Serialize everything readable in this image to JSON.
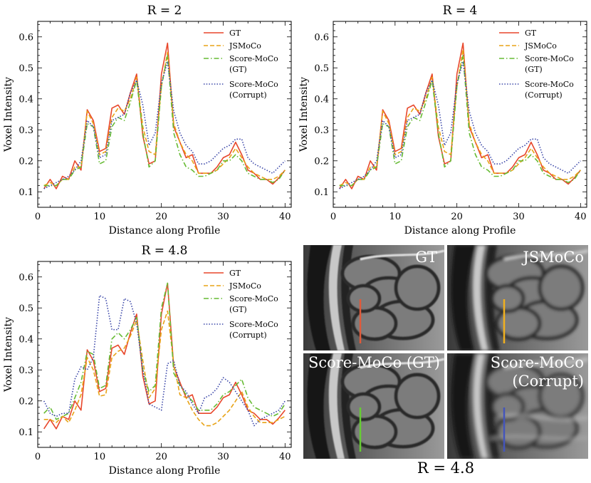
{
  "chart_data": [
    {
      "type": "line",
      "title": "R = 2",
      "xlabel": "Distance along Profile",
      "ylabel": "Voxel Intensity",
      "xlim": [
        0,
        41
      ],
      "ylim": [
        0.05,
        0.65
      ],
      "xticks": [
        "0",
        "10",
        "20",
        "30",
        "40"
      ],
      "yticks": [
        "0.1",
        "0.2",
        "0.3",
        "0.4",
        "0.5",
        "0.6"
      ],
      "legend_position": "top-right",
      "legend": [
        "GT",
        "JSMoCo",
        "Score-MoCo (GT)",
        "Score-MoCo (Corrupt)"
      ],
      "x": [
        1,
        2,
        3,
        4,
        5,
        6,
        7,
        8,
        9,
        10,
        11,
        12,
        13,
        14,
        15,
        16,
        17,
        18,
        19,
        20,
        21,
        22,
        23,
        24,
        25,
        26,
        27,
        28,
        29,
        30,
        31,
        32,
        33,
        34,
        35,
        36,
        37,
        38,
        39,
        40
      ],
      "series": [
        {
          "name": "GT",
          "color": "#e8472b",
          "dash": "solid",
          "values": [
            0.11,
            0.14,
            0.11,
            0.15,
            0.14,
            0.2,
            0.17,
            0.365,
            0.33,
            0.23,
            0.24,
            0.37,
            0.38,
            0.35,
            0.42,
            0.48,
            0.28,
            0.19,
            0.2,
            0.48,
            0.58,
            0.31,
            0.26,
            0.21,
            0.22,
            0.16,
            0.16,
            0.16,
            0.18,
            0.21,
            0.22,
            0.26,
            0.22,
            0.17,
            0.16,
            0.14,
            0.14,
            0.125,
            0.145,
            0.17
          ]
        },
        {
          "name": "JSMoCo",
          "color": "#e8a317",
          "dash": "dashed",
          "values": [
            0.12,
            0.13,
            0.12,
            0.14,
            0.14,
            0.18,
            0.18,
            0.36,
            0.32,
            0.22,
            0.23,
            0.34,
            0.37,
            0.36,
            0.4,
            0.47,
            0.31,
            0.23,
            0.22,
            0.44,
            0.55,
            0.32,
            0.26,
            0.22,
            0.2,
            0.16,
            0.16,
            0.16,
            0.17,
            0.19,
            0.21,
            0.24,
            0.21,
            0.18,
            0.16,
            0.15,
            0.14,
            0.14,
            0.15,
            0.17
          ]
        },
        {
          "name": "Score-MoCo (GT)",
          "color": "#66bb33",
          "dash": "dashdot",
          "values": [
            0.12,
            0.12,
            0.12,
            0.14,
            0.14,
            0.17,
            0.18,
            0.32,
            0.31,
            0.19,
            0.2,
            0.31,
            0.34,
            0.33,
            0.39,
            0.46,
            0.29,
            0.18,
            0.2,
            0.44,
            0.54,
            0.29,
            0.22,
            0.18,
            0.17,
            0.15,
            0.15,
            0.16,
            0.17,
            0.2,
            0.2,
            0.22,
            0.2,
            0.16,
            0.15,
            0.14,
            0.14,
            0.13,
            0.14,
            0.17
          ]
        },
        {
          "name": "Score-MoCo (Corrupt)",
          "color": "#3a46a8",
          "dash": "dotted",
          "values": [
            0.11,
            0.12,
            0.13,
            0.14,
            0.15,
            0.17,
            0.2,
            0.33,
            0.31,
            0.21,
            0.22,
            0.33,
            0.34,
            0.35,
            0.42,
            0.46,
            0.38,
            0.25,
            0.29,
            0.45,
            0.52,
            0.36,
            0.29,
            0.25,
            0.23,
            0.19,
            0.19,
            0.2,
            0.22,
            0.24,
            0.25,
            0.27,
            0.27,
            0.21,
            0.19,
            0.18,
            0.17,
            0.16,
            0.18,
            0.2
          ]
        }
      ]
    },
    {
      "type": "line",
      "title": "R = 4",
      "xlabel": "Distance along Profile",
      "ylabel": "Voxel Intensity",
      "xlim": [
        0,
        41
      ],
      "ylim": [
        0.05,
        0.65
      ],
      "xticks": [
        "0",
        "10",
        "20",
        "30",
        "40"
      ],
      "yticks": [
        "0.1",
        "0.2",
        "0.3",
        "0.4",
        "0.5",
        "0.6"
      ],
      "legend_position": "top-right",
      "legend": [
        "GT",
        "JSMoCo",
        "Score-MoCo (GT)",
        "Score-MoCo (Corrupt)"
      ],
      "x": [
        1,
        2,
        3,
        4,
        5,
        6,
        7,
        8,
        9,
        10,
        11,
        12,
        13,
        14,
        15,
        16,
        17,
        18,
        19,
        20,
        21,
        22,
        23,
        24,
        25,
        26,
        27,
        28,
        29,
        30,
        31,
        32,
        33,
        34,
        35,
        36,
        37,
        38,
        39,
        40
      ],
      "series": [
        {
          "name": "GT",
          "color": "#e8472b",
          "dash": "solid",
          "values": [
            0.11,
            0.14,
            0.11,
            0.15,
            0.14,
            0.2,
            0.17,
            0.365,
            0.33,
            0.23,
            0.24,
            0.37,
            0.38,
            0.35,
            0.42,
            0.48,
            0.28,
            0.19,
            0.2,
            0.48,
            0.58,
            0.31,
            0.26,
            0.21,
            0.22,
            0.16,
            0.16,
            0.16,
            0.18,
            0.21,
            0.22,
            0.26,
            0.22,
            0.17,
            0.16,
            0.14,
            0.14,
            0.125,
            0.145,
            0.17
          ]
        },
        {
          "name": "JSMoCo",
          "color": "#e8a317",
          "dash": "dashed",
          "values": [
            0.12,
            0.13,
            0.12,
            0.14,
            0.14,
            0.18,
            0.18,
            0.36,
            0.32,
            0.22,
            0.23,
            0.34,
            0.37,
            0.36,
            0.4,
            0.47,
            0.31,
            0.23,
            0.22,
            0.44,
            0.56,
            0.32,
            0.26,
            0.22,
            0.2,
            0.16,
            0.16,
            0.16,
            0.17,
            0.19,
            0.21,
            0.24,
            0.21,
            0.18,
            0.16,
            0.15,
            0.14,
            0.14,
            0.15,
            0.17
          ]
        },
        {
          "name": "Score-MoCo (GT)",
          "color": "#66bb33",
          "dash": "dashdot",
          "values": [
            0.12,
            0.12,
            0.12,
            0.14,
            0.14,
            0.17,
            0.18,
            0.32,
            0.31,
            0.19,
            0.2,
            0.31,
            0.34,
            0.33,
            0.39,
            0.46,
            0.29,
            0.18,
            0.2,
            0.44,
            0.54,
            0.29,
            0.22,
            0.18,
            0.17,
            0.15,
            0.15,
            0.16,
            0.17,
            0.2,
            0.2,
            0.22,
            0.2,
            0.16,
            0.15,
            0.14,
            0.14,
            0.13,
            0.14,
            0.17
          ]
        },
        {
          "name": "Score-MoCo (Corrupt)",
          "color": "#3a46a8",
          "dash": "dotted",
          "values": [
            0.11,
            0.12,
            0.13,
            0.14,
            0.15,
            0.17,
            0.2,
            0.33,
            0.31,
            0.21,
            0.22,
            0.33,
            0.34,
            0.35,
            0.42,
            0.46,
            0.38,
            0.25,
            0.29,
            0.45,
            0.52,
            0.36,
            0.29,
            0.25,
            0.23,
            0.19,
            0.19,
            0.2,
            0.22,
            0.24,
            0.25,
            0.27,
            0.27,
            0.21,
            0.19,
            0.18,
            0.17,
            0.16,
            0.18,
            0.2
          ]
        }
      ]
    },
    {
      "type": "line",
      "title": "R = 4.8",
      "xlabel": "Distance along Profile",
      "ylabel": "Voxel Intensity",
      "xlim": [
        0,
        41
      ],
      "ylim": [
        0.05,
        0.65
      ],
      "xticks": [
        "0",
        "10",
        "20",
        "30",
        "40"
      ],
      "yticks": [
        "0.1",
        "0.2",
        "0.3",
        "0.4",
        "0.5",
        "0.6"
      ],
      "legend_position": "top-right",
      "legend": [
        "GT",
        "JSMoCo",
        "Score-MoCo (GT)",
        "Score-MoCo (Corrupt)"
      ],
      "x": [
        1,
        2,
        3,
        4,
        5,
        6,
        7,
        8,
        9,
        10,
        11,
        12,
        13,
        14,
        15,
        16,
        17,
        18,
        19,
        20,
        21,
        22,
        23,
        24,
        25,
        26,
        27,
        28,
        29,
        30,
        31,
        32,
        33,
        34,
        35,
        36,
        37,
        38,
        39,
        40
      ],
      "series": [
        {
          "name": "GT",
          "color": "#e8472b",
          "dash": "solid",
          "values": [
            0.11,
            0.14,
            0.11,
            0.15,
            0.14,
            0.2,
            0.17,
            0.365,
            0.33,
            0.23,
            0.24,
            0.37,
            0.38,
            0.35,
            0.42,
            0.48,
            0.28,
            0.19,
            0.2,
            0.48,
            0.58,
            0.31,
            0.26,
            0.21,
            0.22,
            0.16,
            0.16,
            0.16,
            0.18,
            0.21,
            0.22,
            0.26,
            0.22,
            0.17,
            0.16,
            0.14,
            0.14,
            0.125,
            0.145,
            0.17
          ]
        },
        {
          "name": "JSMoCo",
          "color": "#e8a317",
          "dash": "dashed",
          "values": [
            0.14,
            0.14,
            0.13,
            0.15,
            0.13,
            0.17,
            0.22,
            0.34,
            0.3,
            0.215,
            0.22,
            0.34,
            0.36,
            0.37,
            0.41,
            0.46,
            0.33,
            0.21,
            0.24,
            0.43,
            0.49,
            0.32,
            0.22,
            0.21,
            0.17,
            0.14,
            0.12,
            0.12,
            0.13,
            0.15,
            0.17,
            0.2,
            0.23,
            0.18,
            0.15,
            0.13,
            0.13,
            0.13,
            0.14,
            0.15
          ]
        },
        {
          "name": "Score-MoCo (GT)",
          "color": "#66bb33",
          "dash": "dashdot",
          "values": [
            0.16,
            0.18,
            0.14,
            0.15,
            0.16,
            0.21,
            0.26,
            0.36,
            0.35,
            0.24,
            0.25,
            0.4,
            0.42,
            0.4,
            0.43,
            0.47,
            0.3,
            0.23,
            0.25,
            0.5,
            0.58,
            0.29,
            0.25,
            0.22,
            0.2,
            0.17,
            0.17,
            0.17,
            0.19,
            0.22,
            0.23,
            0.25,
            0.27,
            0.21,
            0.18,
            0.17,
            0.16,
            0.15,
            0.16,
            0.19
          ]
        },
        {
          "name": "Score-MoCo (Corrupt)",
          "color": "#3a46a8",
          "dash": "dotted",
          "values": [
            0.2,
            0.16,
            0.15,
            0.16,
            0.16,
            0.27,
            0.31,
            0.3,
            0.34,
            0.54,
            0.53,
            0.43,
            0.43,
            0.53,
            0.52,
            0.45,
            0.3,
            0.19,
            0.18,
            0.17,
            0.32,
            0.33,
            0.25,
            0.23,
            0.19,
            0.16,
            0.21,
            0.22,
            0.24,
            0.275,
            0.26,
            0.23,
            0.2,
            0.17,
            0.12,
            0.14,
            0.15,
            0.16,
            0.17,
            0.2
          ]
        }
      ]
    }
  ],
  "image_panel": {
    "tiles": [
      {
        "label": "GT",
        "marker_color": "#e05a3a"
      },
      {
        "label": "JSMoCo",
        "marker_color": "#f0b020"
      },
      {
        "label": "Score-MoCo (GT)",
        "marker_color": "#66cc33"
      },
      {
        "label": "Score-MoCo (Corrupt)",
        "marker_color": "#4455bb"
      }
    ],
    "caption": "R = 4.8"
  }
}
